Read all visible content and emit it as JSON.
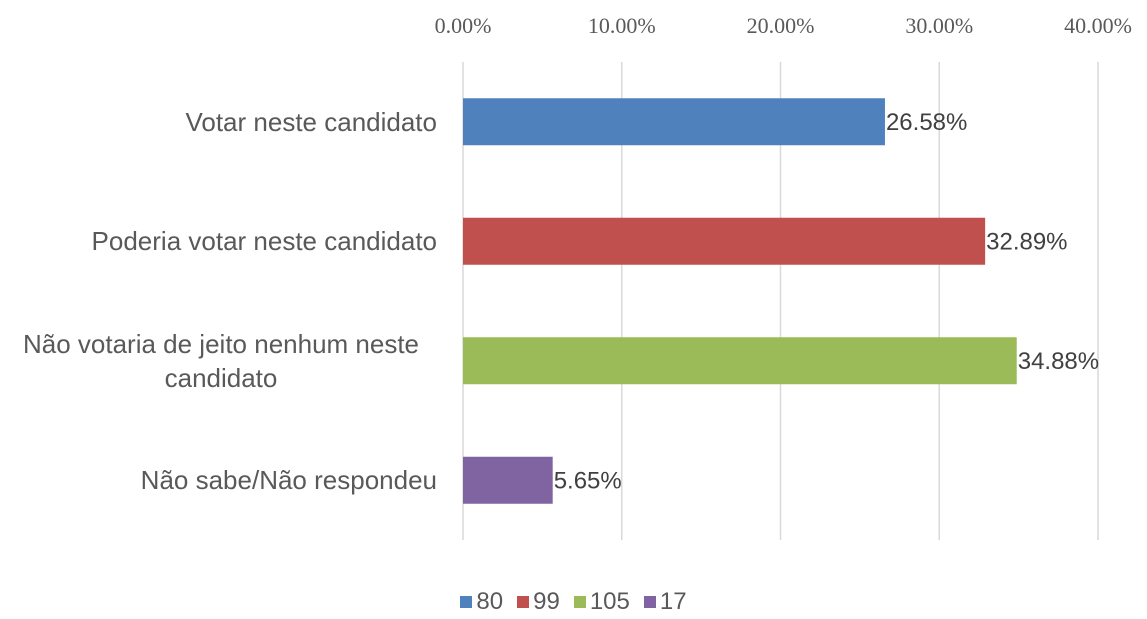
{
  "chart_data": {
    "type": "bar",
    "orientation": "horizontal",
    "categories": [
      "Votar neste candidato",
      "Poderia votar neste candidato",
      "Não votaria de jeito nenhum neste candidato",
      "Não sabe/Não respondeu"
    ],
    "series": [
      {
        "name": "80",
        "color": "#4f81bd",
        "values": [
          26.58,
          null,
          null,
          null
        ],
        "value_labels": [
          "26.58%",
          null,
          null,
          null
        ]
      },
      {
        "name": "99",
        "color": "#c0504d",
        "values": [
          null,
          32.89,
          null,
          null
        ],
        "value_labels": [
          null,
          "32.89%",
          null,
          null
        ]
      },
      {
        "name": "105",
        "color": "#9bbb59",
        "values": [
          null,
          null,
          34.88,
          null
        ],
        "value_labels": [
          null,
          null,
          "34.88%",
          null
        ]
      },
      {
        "name": "17",
        "color": "#8064a2",
        "values": [
          null,
          null,
          null,
          5.65
        ],
        "value_labels": [
          null,
          null,
          null,
          "5.65%"
        ]
      }
    ],
    "xlim": [
      0,
      40
    ],
    "xticks": [
      {
        "value": 0,
        "label": "0.00%"
      },
      {
        "value": 10,
        "label": "10.00%"
      },
      {
        "value": 20,
        "label": "20.00%"
      },
      {
        "value": 30,
        "label": "30.00%"
      },
      {
        "value": 40,
        "label": "40.00%"
      }
    ],
    "grid": true,
    "legend": "bottom"
  }
}
